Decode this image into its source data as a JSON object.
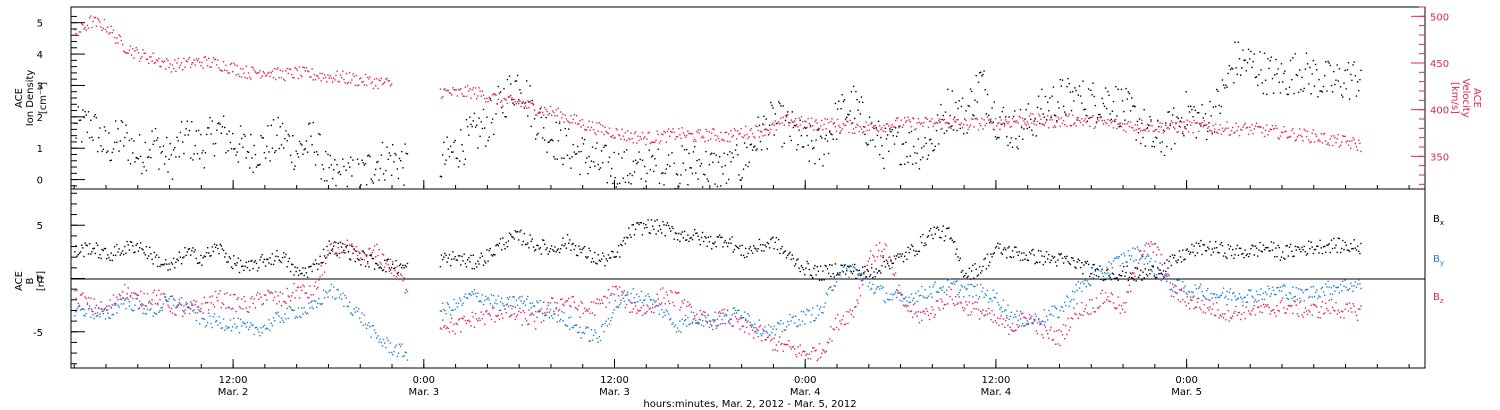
{
  "colors": {
    "black": "#000000",
    "density": "#000000",
    "velocity": "#e0245e",
    "bx": "#000000",
    "by": "#1e7fd8",
    "bz": "#e0245e",
    "axis": "#000000",
    "background": "#ffffff"
  },
  "chart_data": [
    {
      "type": "scatter",
      "panel": "top",
      "xlabel": "hours:minutes, Mar.  2, 2012 - Mar.  5, 2012",
      "x_ticks": [
        {
          "time": "12:00",
          "date": "Mar. 2",
          "hour": 12
        },
        {
          "time": "0:00",
          "date": "Mar. 3",
          "hour": 24
        },
        {
          "time": "12:00",
          "date": "Mar. 3",
          "hour": 36
        },
        {
          "time": "0:00",
          "date": "Mar. 4",
          "hour": 48
        },
        {
          "time": "12:00",
          "date": "Mar. 4",
          "hour": 60
        },
        {
          "time": "0:00",
          "date": "Mar. 5",
          "hour": 72
        }
      ],
      "xlim_hours_from_mar2_0000": [
        1.8,
        87.0
      ],
      "left_axis": {
        "label_lines": [
          "ACE",
          "Ion Density",
          "[cm⁻³]"
        ],
        "ylim": [
          -0.3,
          5.5
        ],
        "ticks": [
          "0",
          "1",
          "2",
          "3",
          "4",
          "5"
        ]
      },
      "right_axis": {
        "label_lines": [
          "ACE",
          "Velocity",
          "[km/s]"
        ],
        "ylim": [
          315,
          510
        ],
        "ticks": [
          "350",
          "400",
          "450",
          "500"
        ]
      },
      "series": [
        {
          "axis": "left",
          "x_hours": [
            2,
            3,
            4,
            5,
            6,
            7,
            8,
            9,
            10,
            11,
            12,
            13,
            14,
            15,
            16,
            17,
            18,
            19,
            20,
            21,
            22,
            23,
            24,
            25,
            26,
            27,
            28,
            29,
            30,
            31,
            32,
            33,
            34,
            35,
            36,
            37,
            38,
            39,
            40,
            41,
            42,
            43,
            44,
            45,
            46,
            47,
            48,
            49,
            50,
            51,
            52,
            53,
            54,
            55,
            56,
            57,
            58,
            59,
            60,
            61,
            62,
            63,
            64,
            65,
            66,
            67,
            68,
            69,
            70,
            71,
            72,
            73,
            74,
            75,
            76,
            77,
            78,
            79,
            80,
            81,
            82,
            83
          ],
          "values": [
            1.6,
            1.8,
            1.0,
            1.4,
            0.8,
            1.2,
            0.6,
            1.4,
            1.0,
            1.6,
            1.2,
            0.9,
            1.1,
            1.4,
            0.9,
            1.3,
            0.1,
            0.1,
            0.1,
            0.6,
            0.7,
            0.4,
            null,
            0.5,
            1.0,
            1.4,
            1.8,
            2.6,
            3.2,
            2.0,
            1.4,
            1.0,
            0.8,
            0.5,
            0.4,
            0.3,
            0.3,
            0.4,
            0.4,
            0.5,
            0.4,
            0.3,
            0.5,
            1.4,
            1.9,
            1.6,
            1.1,
            1.0,
            2.0,
            2.4,
            1.6,
            1.0,
            1.2,
            1.0,
            1.2,
            2.4,
            2.0,
            3.2,
            2.0,
            1.6,
            1.8,
            2.3,
            2.6,
            2.6,
            2.5,
            2.6,
            2.3,
            1.8,
            1.2,
            1.6,
            2.2,
            1.8,
            2.4,
            3.8,
            3.7,
            3.4,
            3.2,
            3.5,
            3.3,
            3.1,
            3.2,
            3.3
          ]
        },
        {
          "axis": "right",
          "x_hours": [
            2,
            3,
            4,
            5,
            6,
            7,
            8,
            9,
            10,
            11,
            12,
            13,
            14,
            15,
            16,
            17,
            18,
            19,
            20,
            21,
            22,
            23,
            24,
            25,
            26,
            27,
            28,
            29,
            30,
            31,
            32,
            33,
            34,
            35,
            36,
            37,
            38,
            39,
            40,
            41,
            42,
            43,
            44,
            45,
            46,
            47,
            48,
            49,
            50,
            51,
            52,
            53,
            54,
            55,
            56,
            57,
            58,
            59,
            60,
            61,
            62,
            63,
            64,
            65,
            66,
            67,
            68,
            69,
            70,
            71,
            72,
            73,
            74,
            75,
            76,
            77,
            78,
            79,
            80,
            81,
            82,
            83
          ],
          "values": [
            480,
            495,
            490,
            470,
            460,
            455,
            448,
            450,
            452,
            450,
            445,
            440,
            442,
            438,
            440,
            438,
            436,
            435,
            432,
            430,
            428,
            null,
            null,
            420,
            418,
            420,
            415,
            410,
            408,
            402,
            398,
            392,
            385,
            380,
            376,
            372,
            370,
            372,
            375,
            372,
            374,
            372,
            376,
            378,
            382,
            390,
            385,
            386,
            384,
            382,
            382,
            384,
            386,
            386,
            386,
            386,
            385,
            386,
            386,
            388,
            390,
            388,
            388,
            390,
            388,
            386,
            384,
            384,
            383,
            382,
            383,
            382,
            381,
            380,
            380,
            378,
            376,
            374,
            372,
            368,
            366,
            362
          ]
        }
      ]
    },
    {
      "type": "scatter",
      "panel": "bottom",
      "left_axis": {
        "label_lines": [
          "ACE",
          "B",
          "[nT]"
        ],
        "ylim": [
          -8.4,
          8.4
        ],
        "ticks": [
          "-5",
          "0",
          "5"
        ]
      },
      "series": [
        {
          "name": "Bx",
          "x_hours": [
            2,
            3,
            4,
            5,
            6,
            7,
            8,
            9,
            10,
            11,
            12,
            13,
            14,
            15,
            16,
            17,
            18,
            19,
            20,
            21,
            22,
            23,
            24,
            25,
            26,
            27,
            28,
            29,
            30,
            31,
            32,
            33,
            34,
            35,
            36,
            37,
            38,
            39,
            40,
            41,
            42,
            43,
            44,
            45,
            46,
            47,
            48,
            49,
            50,
            51,
            52,
            53,
            54,
            55,
            56,
            57,
            58,
            59,
            60,
            61,
            62,
            63,
            64,
            65,
            66,
            67,
            68,
            69,
            70,
            71,
            72,
            73,
            74,
            75,
            76,
            77,
            78,
            79,
            80,
            81,
            82,
            83
          ],
          "values": [
            2.5,
            3.0,
            2.2,
            2.8,
            3.2,
            2.0,
            1.0,
            2.5,
            2.0,
            3.0,
            1.5,
            1.0,
            1.8,
            2.2,
            0.5,
            1.0,
            3.0,
            2.8,
            2.0,
            1.5,
            1.2,
            1.0,
            null,
            1.8,
            2.0,
            1.5,
            2.2,
            3.5,
            4.0,
            3.2,
            2.8,
            3.5,
            2.5,
            1.8,
            2.0,
            4.5,
            5.0,
            4.8,
            4.2,
            4.0,
            3.5,
            3.8,
            2.5,
            3.0,
            3.5,
            2.0,
            1.0,
            0.5,
            1.0,
            0.8,
            0.5,
            1.5,
            2.0,
            3.0,
            4.5,
            4.2,
            0.5,
            1.0,
            2.8,
            2.5,
            2.2,
            2.0,
            1.8,
            1.5,
            0.8,
            0.5,
            0.6,
            0.3,
            0.8,
            1.5,
            2.5,
            3.0,
            2.8,
            2.5,
            2.6,
            3.0,
            2.4,
            2.8,
            3.0,
            3.2,
            3.1,
            3.0
          ]
        },
        {
          "name": "By",
          "x_hours": [
            2,
            3,
            4,
            5,
            6,
            7,
            8,
            9,
            10,
            11,
            12,
            13,
            14,
            15,
            16,
            17,
            18,
            19,
            20,
            21,
            22,
            23,
            24,
            25,
            26,
            27,
            28,
            29,
            30,
            31,
            32,
            33,
            34,
            35,
            36,
            37,
            38,
            39,
            40,
            41,
            42,
            43,
            44,
            45,
            46,
            47,
            48,
            49,
            50,
            51,
            52,
            53,
            54,
            55,
            56,
            57,
            58,
            59,
            60,
            61,
            62,
            63,
            64,
            65,
            66,
            67,
            68,
            69,
            70,
            71,
            72,
            73,
            74,
            75,
            76,
            77,
            78,
            79,
            80,
            81,
            82,
            83
          ],
          "values": [
            -2.8,
            -3.0,
            -3.5,
            -2.0,
            -2.5,
            -3.0,
            -2.0,
            -2.5,
            -3.8,
            -4.0,
            -4.2,
            -4.8,
            -4.5,
            -3.5,
            -3.0,
            -2.8,
            -1.0,
            -2.0,
            -3.5,
            -5.5,
            -6.5,
            -7.0,
            null,
            -3.0,
            -2.5,
            -1.5,
            -1.8,
            -2.5,
            -2.0,
            -2.5,
            -3.0,
            -4.0,
            -5.0,
            -5.5,
            -2.5,
            -1.5,
            -1.8,
            -3.0,
            -4.5,
            -3.5,
            -4.0,
            -3.5,
            -3.0,
            -4.5,
            -5.0,
            -4.0,
            -3.5,
            -3.0,
            0.5,
            1.0,
            -0.5,
            -1.5,
            -2.0,
            -1.5,
            -1.0,
            -0.5,
            -1.0,
            -1.2,
            -1.8,
            -3.5,
            -4.0,
            -3.5,
            -3.0,
            -1.0,
            0.0,
            1.0,
            2.0,
            2.5,
            1.0,
            -0.5,
            -1.0,
            -1.2,
            -1.5,
            -1.4,
            -1.5,
            -1.3,
            -1.0,
            -1.5,
            -1.2,
            -0.8,
            -0.6,
            -0.5
          ]
        },
        {
          "name": "Bz",
          "x_hours": [
            2,
            3,
            4,
            5,
            6,
            7,
            8,
            9,
            10,
            11,
            12,
            13,
            14,
            15,
            16,
            17,
            18,
            19,
            20,
            21,
            22,
            23,
            24,
            25,
            26,
            27,
            28,
            29,
            30,
            31,
            32,
            33,
            34,
            35,
            36,
            37,
            38,
            39,
            40,
            41,
            42,
            43,
            44,
            45,
            46,
            47,
            48,
            49,
            50,
            51,
            52,
            53,
            54,
            55,
            56,
            57,
            58,
            59,
            60,
            61,
            62,
            63,
            64,
            65,
            66,
            67,
            68,
            69,
            70,
            71,
            72,
            73,
            74,
            75,
            76,
            77,
            78,
            79,
            80,
            81,
            82,
            83
          ],
          "values": [
            -1.5,
            -2.5,
            -3.0,
            -1.0,
            -2.0,
            -1.5,
            -2.5,
            -3.0,
            -2.5,
            -1.8,
            -2.2,
            -2.5,
            -1.5,
            -2.0,
            -1.0,
            -1.5,
            2.5,
            3.0,
            2.0,
            2.5,
            1.0,
            -1.0,
            null,
            -4.0,
            -4.5,
            -3.8,
            -3.5,
            -3.0,
            -3.5,
            -4.0,
            -2.5,
            -2.0,
            -3.0,
            -2.5,
            -1.0,
            -2.5,
            -3.0,
            -1.5,
            -2.0,
            -3.5,
            -4.0,
            -3.5,
            -4.5,
            -5.0,
            -6.0,
            -6.5,
            -7.0,
            -6.8,
            -4.0,
            -3.0,
            2.0,
            3.0,
            -2.0,
            -3.5,
            -3.0,
            -1.5,
            -2.5,
            -3.0,
            -4.0,
            -4.5,
            -3.5,
            -5.0,
            -5.5,
            -3.0,
            -2.5,
            -1.5,
            -3.0,
            2.5,
            3.0,
            -1.0,
            -2.0,
            -2.5,
            -3.0,
            -3.2,
            -2.8,
            -3.0,
            -2.5,
            -2.8,
            -3.0,
            -2.6,
            -3.0,
            -3.1
          ]
        }
      ],
      "legend": [
        "Bx",
        "By",
        "Bz"
      ],
      "legend_placement": "right"
    }
  ],
  "texts": {
    "top_left_label": [
      "ACE",
      "Ion Density"
    ],
    "top_left_unit": "[cm⁻³]",
    "top_right_label": [
      "ACE",
      "Velocity"
    ],
    "top_right_unit": "[km/s]",
    "bottom_left_label": [
      "ACE",
      "B"
    ],
    "bottom_left_unit": "[nT]",
    "legend_bx": "B",
    "legend_bx_sub": "x",
    "legend_by": "B",
    "legend_by_sub": "y",
    "legend_bz": "B",
    "legend_bz_sub": "z",
    "xlabel": "hours:minutes, Mar.  2, 2012 - Mar.  5, 2012"
  }
}
